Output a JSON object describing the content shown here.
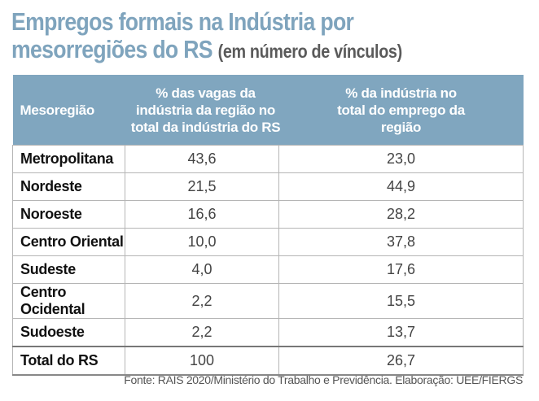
{
  "title": {
    "main": "Empregos formais na Indústria por mesorregiões do RS",
    "line1": "Empregos formais na Indústria por",
    "line2": "mesorregiões do RS",
    "subtitle": "(em número de vínculos)"
  },
  "table": {
    "headers": [
      "Mesoregião",
      "% das vagas da indústria da região no total da indústria do RS",
      "% da indústria no total do emprego da região"
    ],
    "rows": [
      {
        "region": "Metropolitana",
        "share_rs": "43,6",
        "share_region": "23,0"
      },
      {
        "region": "Nordeste",
        "share_rs": "21,5",
        "share_region": "44,9"
      },
      {
        "region": "Noroeste",
        "share_rs": "16,6",
        "share_region": "28,2"
      },
      {
        "region": "Centro Oriental",
        "share_rs": "10,0",
        "share_region": "37,8"
      },
      {
        "region": "Sudeste",
        "share_rs": "4,0",
        "share_region": "17,6"
      },
      {
        "region": "Centro Ocidental",
        "share_rs": "2,2",
        "share_region": "15,5"
      },
      {
        "region": "Sudoeste",
        "share_rs": "2,2",
        "share_region": "13,7"
      }
    ],
    "total": {
      "region": "Total do RS",
      "share_rs": "100",
      "share_region": "26,7"
    }
  },
  "source": "Fonte: RAIS 2020/Ministério do Trabalho e Previdência. Elaboração: UEE/FIERGS",
  "colors": {
    "header_bg": "#80a6bf",
    "title": "#7fa4bd"
  }
}
